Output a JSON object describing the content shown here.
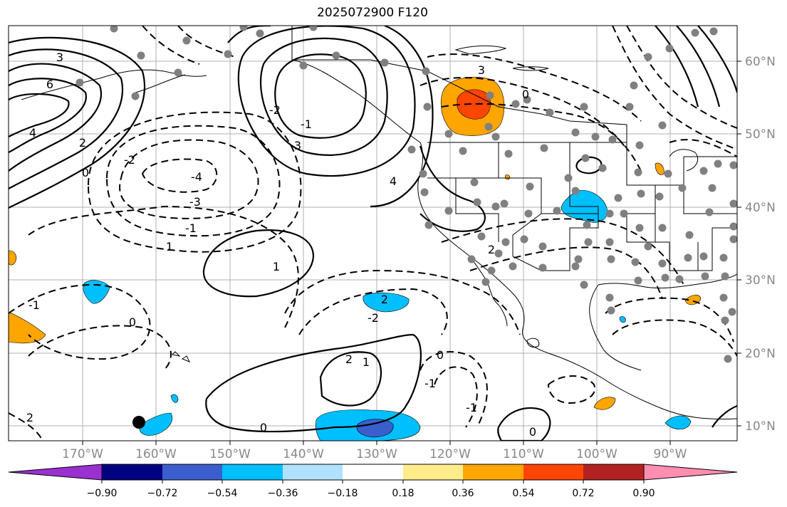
{
  "title": "2025072900 F120",
  "map": {
    "lat_ticks": [
      "60°N",
      "50°N",
      "40°N",
      "30°N",
      "20°N",
      "10°N"
    ],
    "lon_ticks": [
      "170°W",
      "160°W",
      "150°W",
      "140°W",
      "130°W",
      "120°W",
      "110°W",
      "100°W",
      "90°W"
    ],
    "contour_labels": [
      "3",
      "6",
      "4",
      "2",
      "0",
      "-2",
      "-4",
      "-3",
      "-1",
      "1",
      "0",
      "-1",
      "2",
      "-2",
      "-1",
      "3",
      "4",
      "1",
      "0",
      "2",
      "1",
      "2",
      "-2",
      "-1",
      "0",
      "-1",
      "0",
      "2",
      "0",
      "3"
    ]
  },
  "colorbar": {
    "colors": [
      "#9b30d0",
      "#000080",
      "#3a5fcd",
      "#00bfff",
      "#b0e2ff",
      "#ffffff",
      "#ffec8b",
      "#ffa500",
      "#ff4500",
      "#b22222",
      "#ff8eb0",
      "#ff8eb0"
    ],
    "tick_labels": [
      "−0.90",
      "−0.72",
      "−0.54",
      "−0.36",
      "−0.18",
      "0.18",
      "0.36",
      "0.54",
      "0.72",
      "0.90"
    ]
  }
}
